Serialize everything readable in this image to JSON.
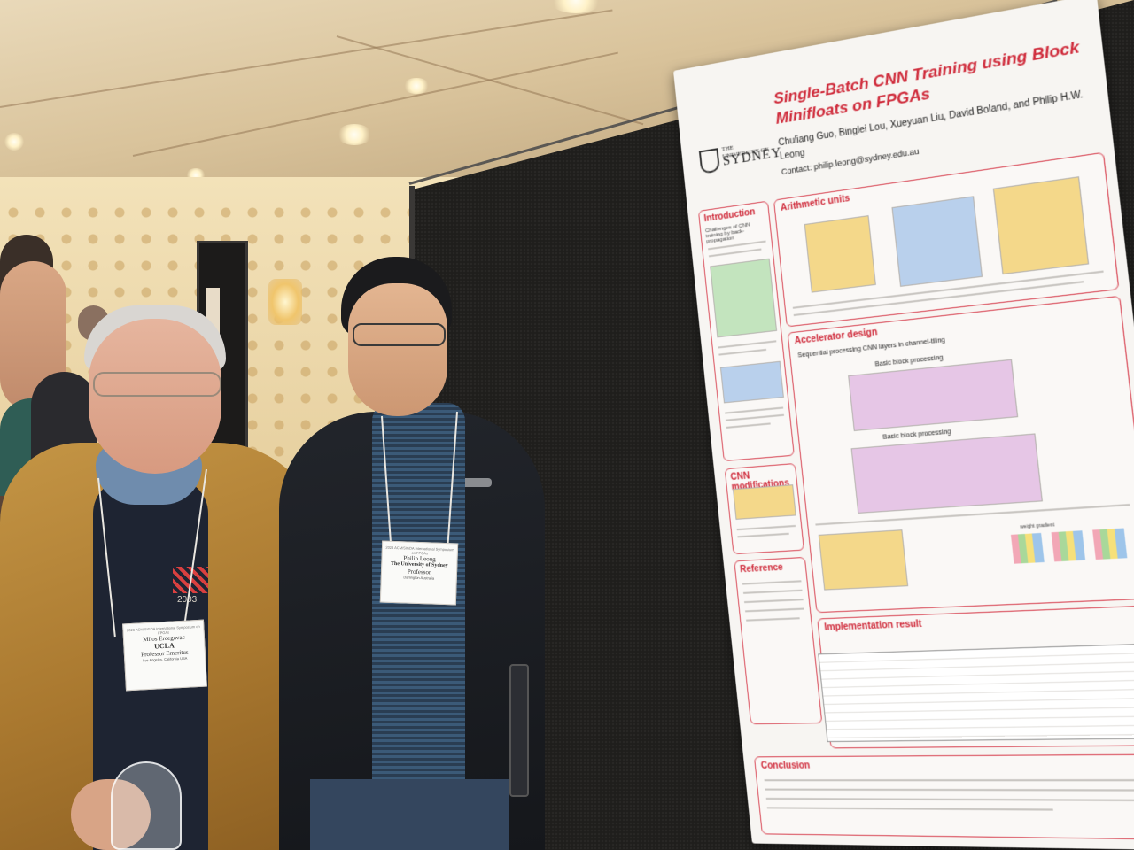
{
  "poster": {
    "title": "Single-Batch CNN Training using Block Minifloats on FPGAs",
    "authors": "Chuliang Guo, Binglei Lou, Xueyuan Liu, David Boland, and Philip H.W. Leong",
    "contact": "Contact: philip.leong@sydney.edu.au",
    "logo_university": "THE UNIVERSITY OF",
    "logo_name": "SYDNEY",
    "sections": {
      "introduction": "Introduction",
      "arithmetic_units": "Arithmetic units",
      "accelerator_design": "Accelerator design",
      "cnn_modifications": "CNN modifications",
      "reference": "Reference",
      "implementation_result": "Implementation result",
      "conclusion": "Conclusion"
    },
    "subheads": {
      "challenges": "Challenges of CNN training by back-propagation",
      "sequential": "Sequential processing CNN layers in channel-tiling",
      "basic_block_1": "Basic block processing",
      "basic_block_2": "Basic block processing",
      "weight_gradient": "weight gradient"
    }
  },
  "badges": {
    "left": {
      "conference": "2023 ACM/SIGDA International Symposium on FPGAs",
      "name": "Milos Ercegovac",
      "org": "UCLA",
      "role": "Professor Emeritus",
      "location": "Los Angeles, California USA"
    },
    "right": {
      "conference": "2023 ACM/SIGDA International Symposium on FPGAs",
      "name": "Philip Leong",
      "org": "The University of Sydney",
      "role": "Professor",
      "location": "Darlington Australia"
    }
  },
  "shirt_print": "2003",
  "colors": {
    "poster_accent": "#cf2a3a",
    "board": "#1f1e1c",
    "jacket": "#b07f35"
  }
}
